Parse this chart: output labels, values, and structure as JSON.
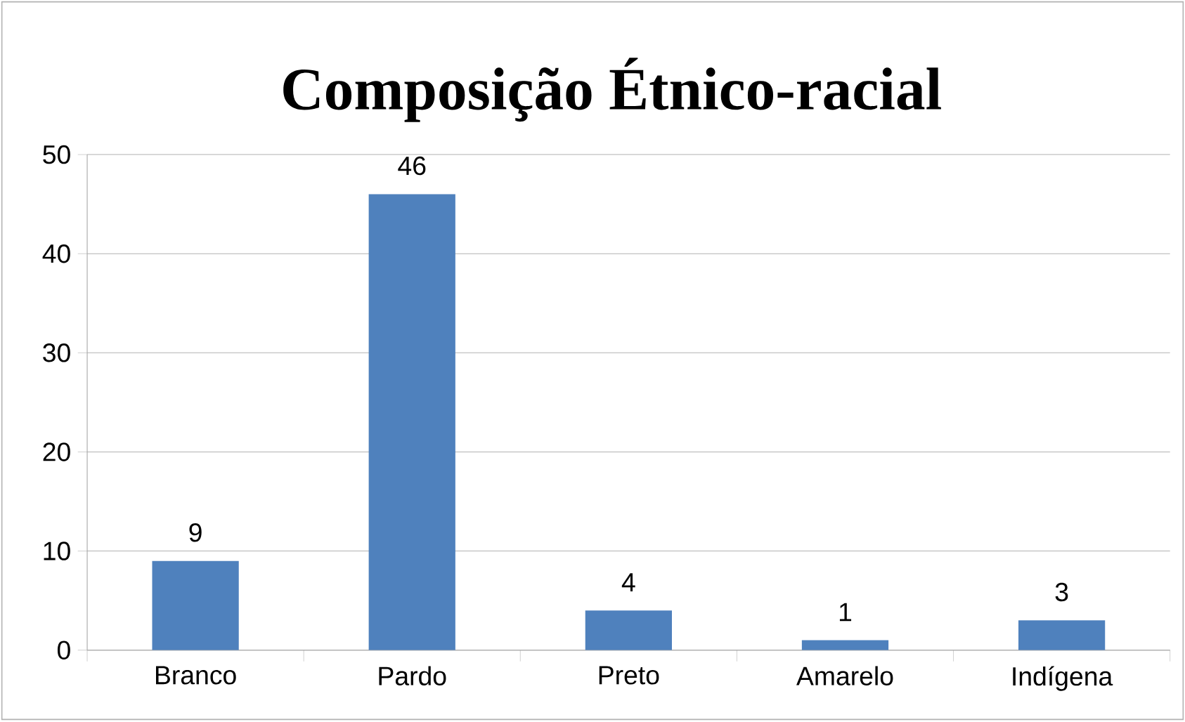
{
  "chart_data": {
    "type": "bar",
    "title": "Composição Étnico-racial",
    "categories": [
      "Branco",
      "Pardo",
      "Preto",
      "Amarelo",
      "Indígena"
    ],
    "values": [
      9,
      46,
      4,
      1,
      3
    ],
    "color": "#4f81bd",
    "ylim": [
      0,
      50
    ],
    "yticks": [
      0,
      10,
      20,
      30,
      40,
      50
    ],
    "grid": "y",
    "data_labels": true
  }
}
